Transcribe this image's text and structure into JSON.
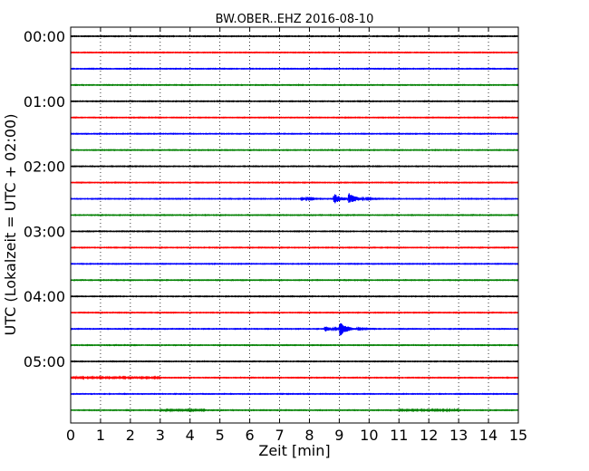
{
  "chart_data": {
    "type": "line",
    "title": "BW.OBER..EHZ 2016-08-10",
    "xlabel": "Zeit  [min]",
    "ylabel": "UTC (Lokalzeit = UTC + 02:00)",
    "xlim": [
      0,
      15
    ],
    "x_ticks": [
      "0",
      "1",
      "2",
      "3",
      "4",
      "5",
      "6",
      "7",
      "8",
      "9",
      "10",
      "11",
      "12",
      "13",
      "14",
      "15"
    ],
    "y_ticks": [
      {
        "label": "00:00",
        "trace": 0
      },
      {
        "label": "01:00",
        "trace": 4
      },
      {
        "label": "02:00",
        "trace": 8
      },
      {
        "label": "03:00",
        "trace": 12
      },
      {
        "label": "04:00",
        "trace": 16
      },
      {
        "label": "05:00",
        "trace": 20
      }
    ],
    "grid": "vertical-dotted",
    "trace_interval_min": 15,
    "trace_colors": [
      "#000000",
      "#ff0000",
      "#0000ff",
      "#008000"
    ],
    "trace_count": 24,
    "events": [
      {
        "trace": 10,
        "onsets_min": [
          7.7,
          8.8,
          9.3
        ],
        "peak_amplitude": 2.4
      },
      {
        "trace": 18,
        "onsets_min": [
          8.5,
          9.0
        ],
        "peak_amplitude": 3.2
      }
    ],
    "noisy_segments": [
      {
        "trace": 21,
        "from_min": 0,
        "to_min": 3
      },
      {
        "trace": 23,
        "from_min": 3,
        "to_min": 4.5
      },
      {
        "trace": 23,
        "from_min": 11,
        "to_min": 13
      }
    ]
  }
}
